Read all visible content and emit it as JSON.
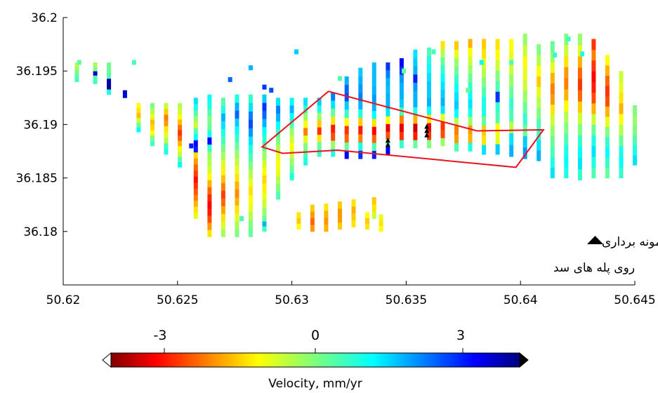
{
  "chart_data": {
    "type": "scatter",
    "title": "",
    "xlabel": "",
    "ylabel": "",
    "xlim": [
      50.62,
      50.645
    ],
    "ylim": [
      36.175,
      36.2
    ],
    "x_ticks": [
      "50.62",
      "50.625",
      "50.63",
      "50.635",
      "50.64",
      "50.645"
    ],
    "y_ticks": [
      "36.18",
      "36.185",
      "36.19",
      "36.195",
      "36.2"
    ],
    "colorbar": {
      "label": "Velocity, mm/yr",
      "range": [
        -4,
        4
      ],
      "ticks": [
        "-3",
        "0",
        "3"
      ],
      "colormap": "jet-reversed (red = negative, blue = positive)"
    },
    "legend_text": [
      "نقاط نمونه برداری",
      "روی پله های سد"
    ],
    "legend_marker": "black-triangle",
    "polygon": {
      "color": "#e8141e",
      "points": [
        [
          50.6316,
          36.1931
        ],
        [
          50.6381,
          36.1894
        ],
        [
          50.641,
          36.1895
        ],
        [
          50.6398,
          36.186
        ],
        [
          50.632,
          36.1876
        ],
        [
          50.6296,
          36.1873
        ],
        [
          50.6287,
          36.1879
        ]
      ]
    },
    "samples": [
      [
        50.6342,
        36.1885
      ],
      [
        50.6342,
        36.1881
      ],
      [
        50.6359,
        36.1898
      ],
      [
        50.6359,
        36.1894
      ],
      [
        50.6359,
        36.189
      ]
    ],
    "columns": [
      {
        "x": 50.6206,
        "y0": 36.194,
        "y1": 36.1958,
        "v": [
          0.5,
          0.3,
          0.1,
          -0.2,
          -0.5
        ]
      },
      {
        "x": 50.6214,
        "y0": 36.1938,
        "y1": 36.1958,
        "v": [
          0.5,
          0.4,
          3.5,
          0.0,
          -0.3
        ]
      },
      {
        "x": 50.622,
        "y0": 36.1928,
        "y1": 36.1958,
        "v": [
          0.8,
          3.8,
          3.6,
          0.3,
          0.2,
          0.1
        ]
      },
      {
        "x": 50.6227,
        "y0": 36.1925,
        "y1": 36.1932,
        "v": [
          3.2,
          3.4
        ]
      },
      {
        "x": 50.6233,
        "y0": 36.1893,
        "y1": 36.192,
        "v": [
          1.0,
          0.2,
          -0.6,
          -1.5,
          -1.2,
          -1.0
        ]
      },
      {
        "x": 50.6239,
        "y0": 36.188,
        "y1": 36.192,
        "v": [
          0.5,
          0.0,
          -1.0,
          -1.3,
          -1.5,
          -0.8,
          -0.4,
          0.0
        ]
      },
      {
        "x": 50.6245,
        "y0": 36.1872,
        "y1": 36.192,
        "v": [
          0.8,
          0.5,
          -0.4,
          -0.8,
          -1.2,
          -1.8,
          -2.0,
          -1.4,
          -0.6
        ]
      },
      {
        "x": 50.6251,
        "y0": 36.186,
        "y1": 36.192,
        "v": [
          1.0,
          0.3,
          -0.5,
          -1.0,
          -1.6,
          -2.2,
          -2.6,
          -2.1,
          -1.5,
          -1.0,
          -0.6,
          -0.4
        ]
      },
      {
        "x": 50.6258,
        "y0": 36.1812,
        "y1": 36.1925,
        "v": [
          -0.8,
          -1.2,
          -1.6,
          -2.0,
          -2.3,
          -2.6,
          -2.9,
          -2.5,
          -2.2,
          -1.8,
          -1.3,
          2.8,
          3.0,
          1.0,
          0.3,
          -0.6,
          -0.2,
          0.4,
          0.8,
          1.2
        ]
      },
      {
        "x": 50.6264,
        "y0": 36.1795,
        "y1": 36.1928,
        "v": [
          -1.2,
          -1.8,
          -2.4,
          -2.8,
          -3.0,
          -2.7,
          -2.2,
          -1.6,
          -1.0,
          -0.6,
          -0.4,
          -0.2,
          0.6,
          3.0,
          0.8,
          0.2,
          0.0,
          0.4,
          0.8,
          1.0
        ]
      },
      {
        "x": 50.627,
        "y0": 36.1795,
        "y1": 36.1925,
        "v": [
          -0.3,
          -0.7,
          -1.2,
          -1.7,
          -2.2,
          -2.5,
          -2.0,
          -1.5,
          -1.1,
          -0.7,
          -0.3,
          0.1,
          0.5,
          0.8,
          1.2,
          1.6,
          0.8,
          0.3
        ]
      },
      {
        "x": 50.6276,
        "y0": 36.1795,
        "y1": 36.1928,
        "v": [
          0.0,
          -0.3,
          -0.8,
          -1.2,
          -1.6,
          -1.9,
          -1.6,
          -1.2,
          -0.8,
          -0.5,
          -0.2,
          0.2,
          0.6,
          1.0,
          1.4,
          2.2,
          1.6,
          0.8
        ]
      },
      {
        "x": 50.6282,
        "y0": 36.1795,
        "y1": 36.1928,
        "v": [
          0.2,
          0.0,
          -0.4,
          -0.8,
          -1.0,
          -1.2,
          -0.8,
          -0.4,
          0.0,
          0.4,
          0.8,
          1.2,
          1.8,
          2.4,
          2.0,
          1.2,
          0.6
        ]
      },
      {
        "x": 50.6288,
        "y0": 36.18,
        "y1": 36.1928,
        "v": [
          0.5,
          0.2,
          -0.2,
          -0.6,
          -0.9,
          -1.1,
          -1.3,
          -1.0,
          -0.6,
          -0.2,
          0.2,
          0.6,
          1.0,
          1.6,
          2.2,
          2.6,
          1.4
        ]
      },
      {
        "x": 50.6294,
        "y0": 36.183,
        "y1": 36.1925,
        "v": [
          0.4,
          0.0,
          -0.4,
          -0.8,
          -1.0,
          -0.8,
          -0.4,
          0.0,
          0.5,
          1.0,
          1.6,
          2.0,
          1.2
        ]
      },
      {
        "x": 50.63,
        "y0": 36.1848,
        "y1": 36.1925,
        "v": [
          0.6,
          0.2,
          -0.2,
          -0.6,
          -1.0,
          -0.6,
          -0.2,
          0.4,
          1.0,
          1.6,
          1.0
        ]
      },
      {
        "x": 50.6306,
        "y0": 36.1862,
        "y1": 36.1925,
        "v": [
          0.8,
          0.4,
          0.0,
          -0.8,
          -2.0,
          -1.0,
          -0.2,
          0.6,
          1.2
        ]
      },
      {
        "x": 50.6312,
        "y0": 36.187,
        "y1": 36.1925,
        "v": [
          0.6,
          0.2,
          -1.2,
          -2.6,
          -1.4,
          -0.2,
          0.8,
          1.4
        ]
      },
      {
        "x": 50.6318,
        "y0": 36.187,
        "y1": 36.193,
        "v": [
          0.8,
          -0.2,
          -2.4,
          -2.8,
          -1.2,
          0.2,
          1.2,
          2.0
        ]
      },
      {
        "x": 50.6324,
        "y0": 36.1868,
        "y1": 36.1945,
        "v": [
          3.0,
          0.2,
          -2.2,
          -2.6,
          -1.0,
          0.6,
          1.4,
          2.4,
          2.2,
          1.6
        ]
      },
      {
        "x": 50.633,
        "y0": 36.1868,
        "y1": 36.1953,
        "v": [
          2.6,
          0.8,
          -2.0,
          -2.8,
          -1.4,
          0.8,
          1.6,
          2.0,
          1.8,
          1.6,
          1.4
        ]
      },
      {
        "x": 50.6336,
        "y0": 36.1868,
        "y1": 36.1958,
        "v": [
          2.8,
          0.4,
          -2.2,
          -3.0,
          -1.2,
          1.0,
          1.6,
          1.8,
          1.6,
          1.5,
          1.5,
          1.5
        ]
      },
      {
        "x": 50.6342,
        "y0": 36.1872,
        "y1": 36.1958,
        "v": [
          3.0,
          0.2,
          -2.4,
          -3.2,
          -1.0,
          1.2,
          1.6,
          1.6,
          1.5,
          1.6,
          2.0,
          2.6
        ]
      },
      {
        "x": 50.6348,
        "y0": 36.1878,
        "y1": 36.1962,
        "v": [
          0.6,
          -2.6,
          -3.2,
          -2.0,
          0.4,
          1.4,
          1.6,
          1.6,
          1.8,
          2.6,
          3.0
        ]
      },
      {
        "x": 50.6354,
        "y0": 36.1878,
        "y1": 36.197,
        "v": [
          0.2,
          -2.8,
          -3.4,
          -1.6,
          0.8,
          1.6,
          1.6,
          1.8,
          2.8,
          1.6,
          1.4,
          1.2
        ]
      },
      {
        "x": 50.636,
        "y0": 36.1878,
        "y1": 36.1972,
        "v": [
          0.0,
          -2.6,
          -3.0,
          -1.2,
          1.0,
          1.6,
          1.4,
          1.4,
          1.2,
          1.0,
          0.8,
          0.4
        ]
      },
      {
        "x": 50.6366,
        "y0": 36.188,
        "y1": 36.1978,
        "v": [
          -0.2,
          -2.4,
          -2.6,
          -0.8,
          1.2,
          1.6,
          1.4,
          1.2,
          1.0,
          0.6,
          0.2,
          -0.4,
          -1.2
        ]
      },
      {
        "x": 50.6372,
        "y0": 36.1875,
        "y1": 36.1978,
        "v": [
          0.4,
          -1.8,
          -2.0,
          -0.4,
          1.0,
          1.4,
          1.2,
          1.0,
          0.6,
          0.2,
          -0.2,
          -0.8,
          -1.4
        ]
      },
      {
        "x": 50.6378,
        "y0": 36.1875,
        "y1": 36.198,
        "v": [
          0.8,
          -1.6,
          -1.8,
          -0.2,
          0.8,
          1.2,
          1.0,
          0.6,
          0.2,
          -0.2,
          -0.6,
          -1.0,
          -1.6
        ]
      },
      {
        "x": 50.6384,
        "y0": 36.1872,
        "y1": 36.198,
        "v": [
          1.2,
          -1.2,
          -1.4,
          0.2,
          0.8,
          0.8,
          0.4,
          0.0,
          -0.4,
          -0.8,
          -1.2,
          -1.4
        ]
      },
      {
        "x": 50.639,
        "y0": 36.1872,
        "y1": 36.198,
        "v": [
          1.4,
          -0.8,
          -1.0,
          0.4,
          0.6,
          2.6,
          0.4,
          0.0,
          -0.6,
          -1.0,
          -1.2
        ]
      },
      {
        "x": 50.6396,
        "y0": 36.187,
        "y1": 36.198,
        "v": [
          1.6,
          1.2,
          -0.4,
          0.4,
          0.6,
          0.2,
          -0.2,
          -0.6,
          -0.8,
          -1.0
        ]
      },
      {
        "x": 50.6402,
        "y0": 36.1868,
        "y1": 36.1985,
        "v": [
          1.8,
          1.4,
          0.2,
          0.6,
          0.2,
          -0.2,
          -0.6,
          -0.8,
          -1.0,
          -0.6,
          -0.2
        ]
      },
      {
        "x": 50.6408,
        "y0": 36.1866,
        "y1": 36.1975,
        "v": [
          1.6,
          1.2,
          0.6,
          0.4,
          0.0,
          -0.4,
          -0.8,
          -1.4,
          -1.0,
          -0.4,
          0.0
        ]
      },
      {
        "x": 50.6414,
        "y0": 36.185,
        "y1": 36.1978,
        "v": [
          1.2,
          0.8,
          0.4,
          0.2,
          -0.2,
          -0.6,
          -1.2,
          -1.8,
          -2.0,
          -1.6,
          -0.8,
          -0.2,
          0.2
        ]
      },
      {
        "x": 50.642,
        "y0": 36.185,
        "y1": 36.1985,
        "v": [
          0.8,
          1.0,
          0.8,
          0.4,
          0.0,
          -0.4,
          -1.0,
          -1.6,
          -2.0,
          -1.8,
          -1.2,
          -0.6,
          0.0
        ]
      },
      {
        "x": 50.6426,
        "y0": 36.1848,
        "y1": 36.1985,
        "v": [
          0.6,
          1.2,
          1.0,
          0.6,
          0.0,
          -0.6,
          -1.4,
          -2.2,
          -2.6,
          -2.2,
          -1.6,
          -0.8,
          -0.2
        ]
      },
      {
        "x": 50.6432,
        "y0": 36.185,
        "y1": 36.198,
        "v": [
          0.4,
          0.8,
          1.2,
          0.8,
          0.2,
          -0.6,
          -1.6,
          -2.4,
          -2.8,
          -3.0,
          -2.6,
          -2.0,
          -2.6
        ]
      },
      {
        "x": 50.6438,
        "y0": 36.185,
        "y1": 36.1965,
        "v": [
          0.2,
          0.6,
          1.0,
          0.6,
          0.0,
          -0.8,
          -1.6,
          -2.4,
          -2.6,
          -2.2,
          -1.6,
          -1.0
        ]
      },
      {
        "x": 50.6444,
        "y0": 36.185,
        "y1": 36.195,
        "v": [
          0.6,
          1.0,
          0.8,
          0.2,
          -0.4,
          -1.0,
          -1.6,
          -1.2,
          -0.8,
          -0.6
        ]
      },
      {
        "x": 50.645,
        "y0": 36.1862,
        "y1": 36.1918,
        "v": [
          1.2,
          0.8,
          0.4,
          0.0,
          -0.2,
          0.0
        ]
      },
      {
        "x": 50.6336,
        "y0": 36.1812,
        "y1": 36.1832,
        "v": [
          -0.6,
          -1.2,
          -1.4
        ]
      },
      {
        "x": 50.6303,
        "y0": 36.1802,
        "y1": 36.1818,
        "v": [
          -1.0,
          -1.4,
          -1.2
        ]
      },
      {
        "x": 50.6309,
        "y0": 36.18,
        "y1": 36.1825,
        "v": [
          -1.8,
          -2.2,
          -1.8,
          -1.4
        ]
      },
      {
        "x": 50.6315,
        "y0": 36.18,
        "y1": 36.1826,
        "v": [
          -1.6,
          -1.8,
          -1.6,
          -1.2
        ]
      },
      {
        "x": 50.6321,
        "y0": 36.1802,
        "y1": 36.1828,
        "v": [
          -1.4,
          -1.8,
          -1.8,
          -1.4
        ]
      },
      {
        "x": 50.6327,
        "y0": 36.1804,
        "y1": 36.183,
        "v": [
          -1.2,
          -1.4,
          -1.6,
          -1.2
        ]
      },
      {
        "x": 50.6333,
        "y0": 36.1802,
        "y1": 36.1818,
        "v": [
          -1.2,
          -1.4,
          -1.0
        ]
      },
      {
        "x": 50.6339,
        "y0": 36.18,
        "y1": 36.1816,
        "v": [
          -1.0,
          -1.2,
          -0.8
        ]
      }
    ],
    "singles": [
      {
        "x": 50.6207,
        "y": 36.1958,
        "v": 0.3
      },
      {
        "x": 50.6231,
        "y": 36.1958,
        "v": 0.4
      },
      {
        "x": 50.6282,
        "y": 36.1953,
        "v": 1.6
      },
      {
        "x": 50.6302,
        "y": 36.1968,
        "v": 1.4
      },
      {
        "x": 50.6321,
        "y": 36.1943,
        "v": 0.4
      },
      {
        "x": 50.6349,
        "y": 36.195,
        "v": 0.2
      },
      {
        "x": 50.6362,
        "y": 36.1968,
        "v": 0.5
      },
      {
        "x": 50.6396,
        "y": 36.1958,
        "v": 0.4
      },
      {
        "x": 50.6415,
        "y": 36.1965,
        "v": 0.6
      },
      {
        "x": 50.6421,
        "y": 36.198,
        "v": 0.5
      },
      {
        "x": 50.6427,
        "y": 36.1966,
        "v": 0.8
      },
      {
        "x": 50.6377,
        "y": 36.1932,
        "v": 0.2
      },
      {
        "x": 50.6383,
        "y": 36.1958,
        "v": 1.0
      },
      {
        "x": 50.6273,
        "y": 36.1942,
        "v": 2.2
      },
      {
        "x": 50.6288,
        "y": 36.1935,
        "v": 2.6
      },
      {
        "x": 50.6291,
        "y": 36.1932,
        "v": 2.4
      },
      {
        "x": 50.6256,
        "y": 36.188,
        "v": 2.8
      },
      {
        "x": 50.63,
        "y": 36.1852,
        "v": 0.8
      },
      {
        "x": 50.6288,
        "y": 36.1807,
        "v": 1.6
      },
      {
        "x": 50.6278,
        "y": 36.1812,
        "v": 0.4
      }
    ]
  }
}
